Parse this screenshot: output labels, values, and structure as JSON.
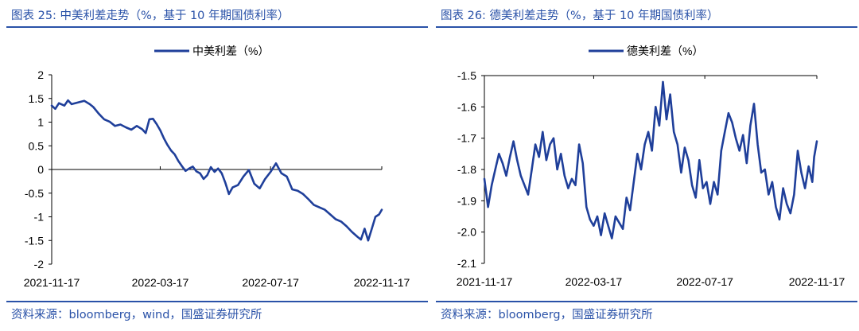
{
  "charts": [
    {
      "fig_title": "图表 25:  中美利差走势（%，基于 10 年期国债利率）",
      "source": "资料来源：bloomberg，wind，国盛证券研究所"
    },
    {
      "fig_title": "图表 26:  德美利差走势（%，基于 10 年期国债利率）",
      "source": "资料来源：bloomberg，国盛证券研究所"
    }
  ],
  "colors": {
    "series": "#1f3f9a",
    "title": "#2a52a8",
    "axis": "#000000"
  },
  "chart_data": [
    {
      "type": "line",
      "title": "",
      "legend": "中美利差（%）",
      "legend_position": "top-center",
      "xlabel": "",
      "ylabel": "",
      "ylim": [
        -2,
        2
      ],
      "yticks": [
        -2,
        -1.5,
        -1,
        -0.5,
        0,
        0.5,
        1,
        1.5,
        2
      ],
      "ytick_labels": [
        "-2",
        "-1.5",
        "-1",
        "-0.5",
        "0",
        "0.5",
        "1",
        "1.5",
        "2"
      ],
      "xlim": [
        0,
        365
      ],
      "xticks": [
        0,
        120,
        242,
        365
      ],
      "xtick_labels": [
        "2021-11-17",
        "2022-03-17",
        "2022-07-17",
        "2022-11-17"
      ],
      "x_axis_at": 0,
      "series": [
        {
          "name": "中美利差（%）",
          "x": [
            0,
            4,
            8,
            14,
            18,
            22,
            30,
            36,
            42,
            46,
            52,
            58,
            64,
            70,
            76,
            82,
            88,
            94,
            100,
            104,
            108,
            112,
            116,
            120,
            124,
            128,
            132,
            136,
            140,
            144,
            148,
            152,
            156,
            160,
            164,
            168,
            172,
            176,
            180,
            184,
            188,
            192,
            196,
            200,
            206,
            212,
            218,
            224,
            230,
            236,
            242,
            248,
            254,
            260,
            266,
            272,
            278,
            284,
            290,
            296,
            302,
            308,
            314,
            320,
            326,
            332,
            338,
            342,
            346,
            350,
            354,
            358,
            362,
            365
          ],
          "values": [
            1.35,
            1.28,
            1.4,
            1.35,
            1.46,
            1.38,
            1.42,
            1.45,
            1.38,
            1.32,
            1.18,
            1.06,
            1.01,
            0.92,
            0.95,
            0.89,
            0.84,
            0.92,
            0.85,
            0.77,
            1.06,
            1.07,
            0.96,
            0.83,
            0.66,
            0.52,
            0.4,
            0.32,
            0.18,
            0.07,
            -0.03,
            0.02,
            0.06,
            -0.04,
            -0.08,
            -0.2,
            -0.12,
            0.05,
            -0.05,
            0.02,
            -0.08,
            -0.28,
            -0.52,
            -0.38,
            -0.33,
            -0.15,
            -0.01,
            -0.3,
            -0.4,
            -0.2,
            -0.05,
            0.13,
            -0.08,
            -0.15,
            -0.42,
            -0.45,
            -0.52,
            -0.63,
            -0.75,
            -0.8,
            -0.85,
            -0.95,
            -1.05,
            -1.1,
            -1.2,
            -1.32,
            -1.42,
            -1.48,
            -1.25,
            -1.5,
            -1.25,
            -1.0,
            -0.95,
            -0.85
          ]
        }
      ]
    },
    {
      "type": "line",
      "title": "",
      "legend": "德美利差（%）",
      "legend_position": "top-center",
      "xlabel": "",
      "ylabel": "",
      "ylim": [
        -2.1,
        -1.5
      ],
      "yticks": [
        -2.1,
        -2.0,
        -1.9,
        -1.8,
        -1.7,
        -1.6,
        -1.5
      ],
      "ytick_labels": [
        "-2.1",
        "-2.0",
        "-1.9",
        "-1.8",
        "-1.7",
        "-1.6",
        "-1.5"
      ],
      "xlim": [
        0,
        365
      ],
      "xticks": [
        0,
        120,
        242,
        365
      ],
      "xtick_labels": [
        "2021-11-17",
        "2022-03-17",
        "2022-07-17",
        "2022-11-17"
      ],
      "x_axis_at": -1.5,
      "series": [
        {
          "name": "德美利差（%）",
          "x": [
            0,
            4,
            8,
            12,
            16,
            20,
            24,
            28,
            32,
            36,
            40,
            44,
            48,
            52,
            56,
            60,
            64,
            68,
            72,
            76,
            80,
            84,
            88,
            92,
            96,
            100,
            104,
            108,
            112,
            116,
            120,
            124,
            128,
            132,
            136,
            140,
            144,
            148,
            152,
            156,
            160,
            164,
            168,
            172,
            176,
            180,
            184,
            188,
            192,
            196,
            200,
            204,
            208,
            212,
            216,
            220,
            224,
            228,
            232,
            236,
            240,
            244,
            248,
            252,
            256,
            260,
            264,
            268,
            272,
            276,
            280,
            284,
            288,
            292,
            296,
            300,
            304,
            308,
            312,
            316,
            320,
            324,
            328,
            332,
            336,
            340,
            344,
            348,
            352,
            356,
            360,
            362,
            365
          ],
          "values": [
            -1.83,
            -1.92,
            -1.85,
            -1.8,
            -1.75,
            -1.78,
            -1.82,
            -1.76,
            -1.71,
            -1.77,
            -1.82,
            -1.85,
            -1.88,
            -1.8,
            -1.72,
            -1.76,
            -1.68,
            -1.77,
            -1.72,
            -1.7,
            -1.8,
            -1.75,
            -1.82,
            -1.86,
            -1.83,
            -1.85,
            -1.72,
            -1.78,
            -1.92,
            -1.96,
            -1.98,
            -1.95,
            -2.01,
            -1.94,
            -1.98,
            -2.02,
            -1.95,
            -1.97,
            -1.99,
            -1.89,
            -1.93,
            -1.84,
            -1.75,
            -1.8,
            -1.72,
            -1.68,
            -1.74,
            -1.6,
            -1.66,
            -1.52,
            -1.64,
            -1.56,
            -1.68,
            -1.72,
            -1.81,
            -1.73,
            -1.77,
            -1.85,
            -1.89,
            -1.77,
            -1.86,
            -1.84,
            -1.91,
            -1.84,
            -1.88,
            -1.74,
            -1.68,
            -1.62,
            -1.65,
            -1.7,
            -1.74,
            -1.69,
            -1.78,
            -1.66,
            -1.59,
            -1.72,
            -1.81,
            -1.8,
            -1.88,
            -1.84,
            -1.92,
            -1.96,
            -1.86,
            -1.91,
            -1.94,
            -1.88,
            -1.74,
            -1.81,
            -1.86,
            -1.79,
            -1.84,
            -1.76,
            -1.71
          ]
        }
      ]
    }
  ]
}
